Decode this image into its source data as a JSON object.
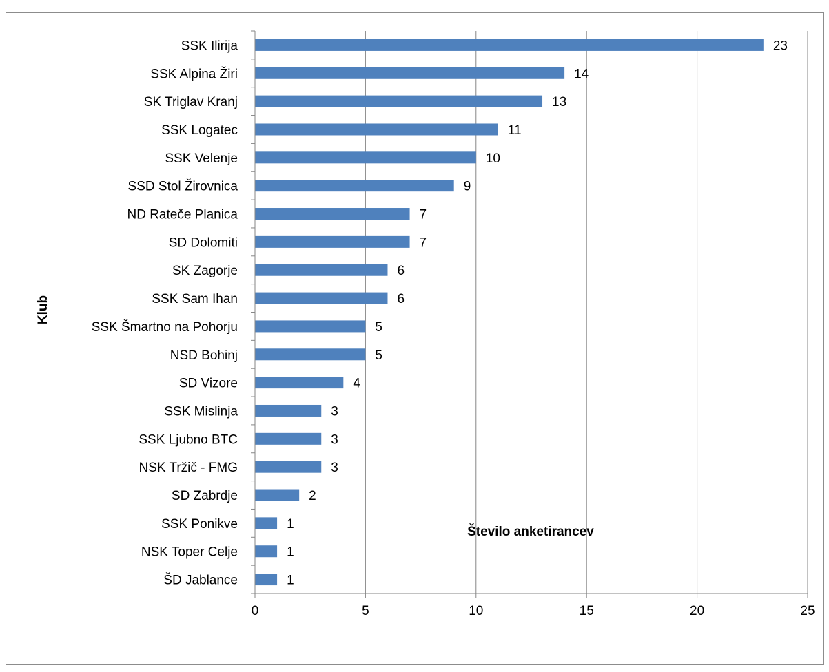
{
  "chart_data": {
    "type": "bar",
    "orientation": "horizontal",
    "title": "",
    "xlabel": "Število anketirancev",
    "ylabel": "Klub",
    "xlim": [
      0,
      25
    ],
    "xticks": [
      0,
      5,
      10,
      15,
      20,
      25
    ],
    "grid": "vertical",
    "legend": "none",
    "bar_color": "#4f81bd",
    "categories": [
      "SSK Ilirija",
      "SSK Alpina Žiri",
      "SK Triglav Kranj",
      "SSK Logatec",
      "SSK Velenje",
      "SSD Stol Žirovnica",
      "ND Rateče Planica",
      "SD Dolomiti",
      "SK Zagorje",
      "SSK Sam Ihan",
      "SSK Šmartno na Pohorju",
      "NSD Bohinj",
      "SD Vizore",
      "SSK Mislinja",
      "SSK Ljubno BTC",
      "NSK Tržič - FMG",
      "SD Zabrdje",
      "SSK Ponikve",
      "NSK Toper Celje",
      "ŠD Jablance"
    ],
    "values": [
      23,
      14,
      13,
      11,
      10,
      9,
      7,
      7,
      6,
      6,
      5,
      5,
      4,
      3,
      3,
      3,
      2,
      1,
      1,
      1
    ]
  }
}
